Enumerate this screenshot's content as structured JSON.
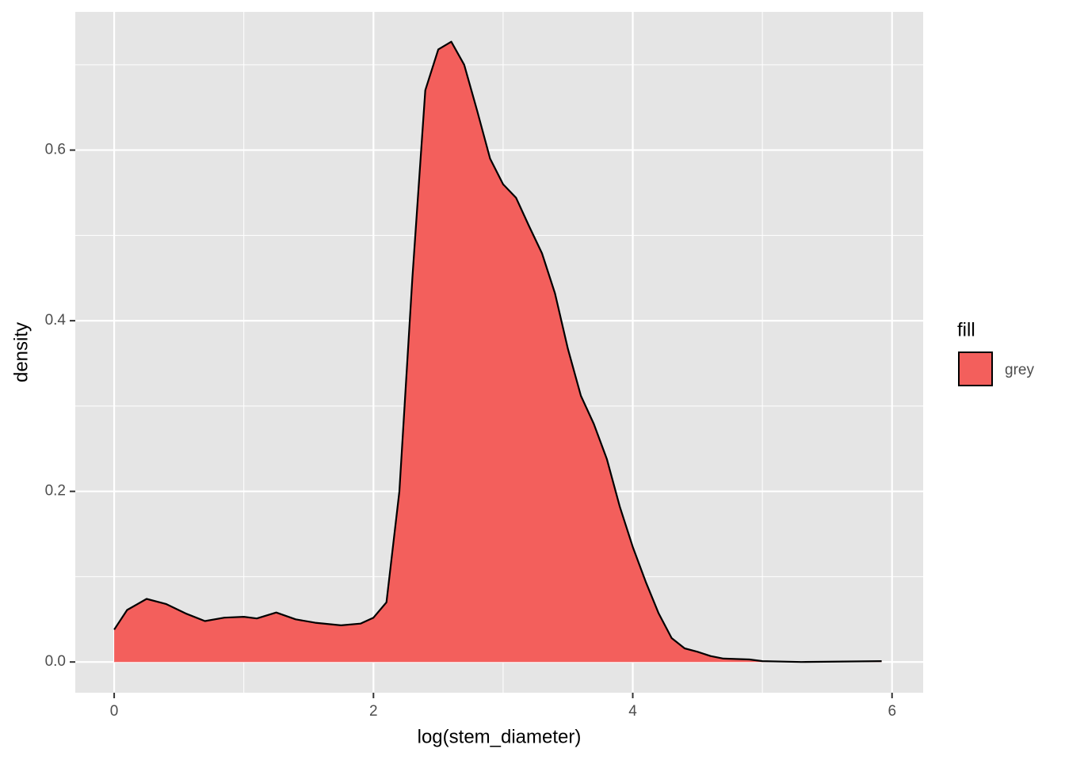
{
  "chart_data": {
    "type": "area",
    "x_label": "log(stem_diameter)",
    "y_label": "density",
    "x": [
      0,
      0.1,
      0.25,
      0.4,
      0.55,
      0.7,
      0.85,
      1.0,
      1.1,
      1.25,
      1.4,
      1.55,
      1.75,
      1.9,
      2.0,
      2.1,
      2.2,
      2.3,
      2.4,
      2.5,
      2.6,
      2.7,
      2.8,
      2.9,
      3.0,
      3.1,
      3.2,
      3.3,
      3.4,
      3.5,
      3.6,
      3.7,
      3.8,
      3.9,
      4.0,
      4.1,
      4.2,
      4.3,
      4.4,
      4.5,
      4.6,
      4.7,
      4.9,
      5.0,
      5.3,
      5.92
    ],
    "series": [
      {
        "name": "grey",
        "color": "#f35f5c",
        "values": [
          0.038,
          0.061,
          0.074,
          0.068,
          0.057,
          0.048,
          0.052,
          0.053,
          0.051,
          0.058,
          0.05,
          0.046,
          0.043,
          0.045,
          0.052,
          0.07,
          0.2,
          0.45,
          0.67,
          0.718,
          0.727,
          0.7,
          0.646,
          0.59,
          0.56,
          0.544,
          0.511,
          0.479,
          0.432,
          0.367,
          0.312,
          0.279,
          0.238,
          0.182,
          0.135,
          0.094,
          0.057,
          0.028,
          0.016,
          0.012,
          0.007,
          0.004,
          0.003,
          0.001,
          0.0,
          0.001
        ]
      }
    ],
    "legend_title": "fill",
    "legend_position": "right",
    "xlim": [
      -0.3,
      6.24
    ],
    "ylim": [
      -0.036,
      0.762
    ],
    "xticks": [
      0,
      2,
      4,
      6
    ],
    "yticks": [
      {
        "value": 0,
        "label": "0.0"
      },
      {
        "value": 0.2,
        "label": "0.2"
      },
      {
        "value": 0.4,
        "label": "0.4"
      },
      {
        "value": 0.6,
        "label": "0.6"
      }
    ],
    "x_minor_grid": [
      1,
      3,
      5
    ],
    "y_minor_grid": [
      0.1,
      0.3,
      0.5,
      0.7
    ],
    "grid": true
  }
}
